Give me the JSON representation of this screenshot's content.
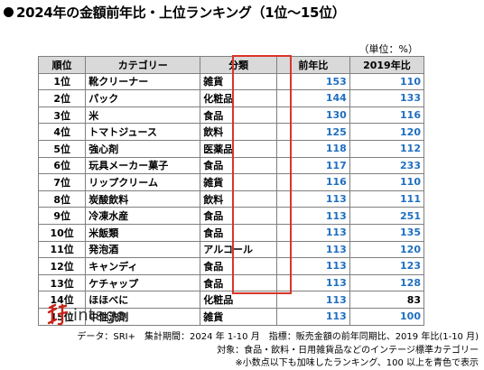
{
  "title": "2024年の金額前年比・上位ランキング（1位～15位）",
  "unit_note": "（単位：%）",
  "table": {
    "headers": {
      "rank": "順位",
      "category": "カテゴリー",
      "class": "分類",
      "yoy": "前年比",
      "vs2019": "2019年比"
    },
    "rows": [
      {
        "rank": "1位",
        "category": "靴クリーナー",
        "class": "雑貨",
        "yoy": "153",
        "vs2019": "110",
        "vs2019_over100": true
      },
      {
        "rank": "2位",
        "category": "パック",
        "class": "化粧品",
        "yoy": "144",
        "vs2019": "133",
        "vs2019_over100": true
      },
      {
        "rank": "3位",
        "category": "米",
        "class": "食品",
        "yoy": "130",
        "vs2019": "116",
        "vs2019_over100": true
      },
      {
        "rank": "4位",
        "category": "トマトジュース",
        "class": "飲料",
        "yoy": "125",
        "vs2019": "120",
        "vs2019_over100": true
      },
      {
        "rank": "5位",
        "category": "強心剤",
        "class": "医薬品",
        "yoy": "118",
        "vs2019": "112",
        "vs2019_over100": true
      },
      {
        "rank": "6位",
        "category": "玩具メーカー菓子",
        "class": "食品",
        "yoy": "117",
        "vs2019": "233",
        "vs2019_over100": true
      },
      {
        "rank": "7位",
        "category": "リップクリーム",
        "class": "雑貨",
        "yoy": "116",
        "vs2019": "110",
        "vs2019_over100": true
      },
      {
        "rank": "8位",
        "category": "炭酸飲料",
        "class": "飲料",
        "yoy": "113",
        "vs2019": "111",
        "vs2019_over100": true
      },
      {
        "rank": "9位",
        "category": "冷凍水産",
        "class": "食品",
        "yoy": "113",
        "vs2019": "251",
        "vs2019_over100": true
      },
      {
        "rank": "10位",
        "category": "米飯類",
        "class": "食品",
        "yoy": "113",
        "vs2019": "135",
        "vs2019_over100": true
      },
      {
        "rank": "11位",
        "category": "発泡酒",
        "class": "アルコール",
        "yoy": "113",
        "vs2019": "120",
        "vs2019_over100": true
      },
      {
        "rank": "12位",
        "category": "キャンディ",
        "class": "食品",
        "yoy": "113",
        "vs2019": "123",
        "vs2019_over100": true
      },
      {
        "rank": "13位",
        "category": "ケチャップ",
        "class": "食品",
        "yoy": "113",
        "vs2019": "128",
        "vs2019_over100": true
      },
      {
        "rank": "14位",
        "category": "ほほべに",
        "class": "化粧品",
        "yoy": "113",
        "vs2019": "83",
        "vs2019_over100": false
      },
      {
        "rank": "15位",
        "category": "中性洗剤",
        "class": "雑貨",
        "yoy": "113",
        "vs2019": "100",
        "vs2019_over100": true
      }
    ]
  },
  "logo": {
    "text": "intage"
  },
  "colors": {
    "highlight": "#1f6fc0",
    "frame": "#d9342b",
    "header_bg": "#d9d9d9"
  },
  "footnotes": [
    "データ：SRI+　集計期間：2024 年 1-10 月　指標：販売金額の前年同期比、2019 年比(1-10 月)",
    "対象：食品・飲料・日用雑貨品などのインテージ標準カテゴリー",
    "※小数点以下も加味したランキング、100 以上を青色で表示"
  ]
}
